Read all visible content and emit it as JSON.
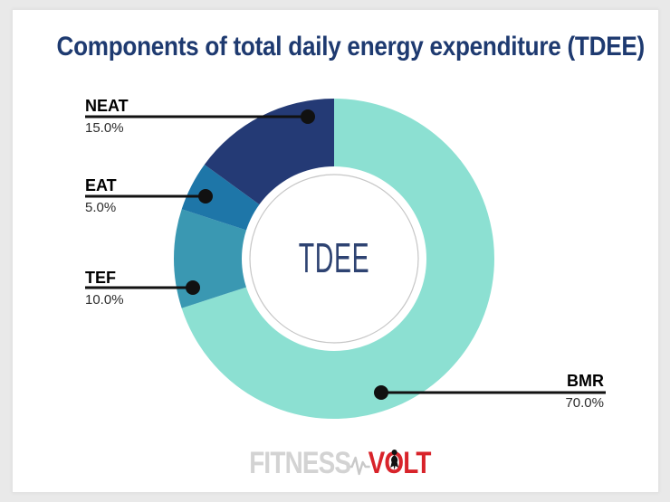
{
  "title": "Components of total daily energy expenditure (TDEE)",
  "chart_data": {
    "type": "pie",
    "donut": true,
    "title": "Components of total daily energy expenditure (TDEE)",
    "center_label": "TDEE",
    "start_angle_deg": 0,
    "direction": "clockwise",
    "legend_position": "callouts",
    "series": [
      {
        "name": "BMR",
        "value": 70.0,
        "label": "70.0%",
        "color": "#8ce0d2"
      },
      {
        "name": "TEF",
        "value": 10.0,
        "label": "10.0%",
        "color": "#3a98b2"
      },
      {
        "name": "EAT",
        "value": 5.0,
        "label": "5.0%",
        "color": "#1e76a8"
      },
      {
        "name": "NEAT",
        "value": 15.0,
        "label": "15.0%",
        "color": "#243a75"
      }
    ]
  },
  "logo": {
    "part1": "FITNESS",
    "part2": "VOLT"
  },
  "colors": {
    "title_navy": "#1e3a70",
    "center_label_navy": "#2e4372",
    "leader_line": "#111111",
    "inner_ring_gray": "#c6c6c6",
    "logo_gray": "#d3d3d3",
    "logo_red": "#d8232a",
    "page_background": "#e9e9e9",
    "card_background": "#ffffff"
  }
}
